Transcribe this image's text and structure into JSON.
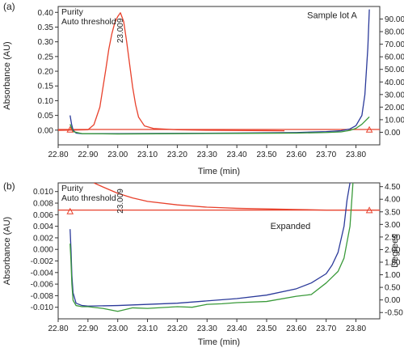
{
  "colors": {
    "red": "#e8412c",
    "blue": "#2b3a9a",
    "green": "#3a9a3a",
    "axis": "#333333"
  },
  "chart_data": [
    {
      "panel_label": "(a)",
      "type": "line",
      "xlabel": "Time (min)",
      "ylabel": "Absorbance (AU)",
      "y2label": "",
      "xlim": [
        22.8,
        23.88
      ],
      "ylim": [
        -0.05,
        0.42
      ],
      "y2lim": [
        -10,
        100
      ],
      "xticks": [
        22.8,
        22.9,
        23.0,
        23.1,
        23.2,
        23.3,
        23.4,
        23.5,
        23.6,
        23.7,
        23.8
      ],
      "xtick_labels": [
        "22.80",
        "22.90",
        "23.00",
        "23.10",
        "23.20",
        "23.30",
        "23.40",
        "23.50",
        "23.60",
        "23.70",
        "23.80"
      ],
      "yticks": [
        0.0,
        0.05,
        0.1,
        0.15,
        0.2,
        0.25,
        0.3,
        0.35,
        0.4
      ],
      "ytick_labels": [
        "0.00",
        "0.05",
        "0.10",
        "0.15",
        "0.20",
        "0.25",
        "0.30",
        "0.35",
        "0.40"
      ],
      "y2ticks": [
        0,
        10,
        20,
        30,
        40,
        50,
        60,
        70,
        80,
        90
      ],
      "y2tick_labels": [
        "0.00",
        "10.00",
        "20.00",
        "30.00",
        "40.00",
        "50.00",
        "60.00",
        "70.00",
        "80.00",
        "90.00"
      ],
      "legend": [
        "Purity",
        "Auto threshold"
      ],
      "annotations": [
        {
          "text": "Sample lot A",
          "x": 23.72,
          "y": 0.38,
          "anchor": "middle"
        }
      ],
      "peak_label": {
        "text": "23.009",
        "x": 23.009,
        "y": 0.38
      },
      "markers": [
        {
          "x": 22.84,
          "y": 0.0
        },
        {
          "x": 23.845,
          "y": 0.0
        }
      ],
      "series": [
        {
          "axis": "y2",
          "color": "red",
          "x": [
            22.79,
            22.9,
            22.92,
            22.94,
            22.96,
            22.97,
            22.98,
            22.99,
            23.0,
            23.009,
            23.02,
            23.03,
            23.04,
            23.05,
            23.06,
            23.07,
            23.09,
            23.12,
            23.2,
            23.3,
            23.4,
            23.5,
            23.56
          ],
          "y": [
            1.5,
            2.0,
            6,
            20,
            50,
            66,
            78,
            87,
            92,
            95,
            88,
            72,
            54,
            36,
            22,
            12,
            5,
            3,
            2,
            1.6,
            1.4,
            1.3,
            1.2
          ]
        },
        {
          "axis": "y2",
          "color": "red",
          "x": [
            22.79,
            23.88
          ],
          "y": [
            2.2,
            2.2
          ]
        },
        {
          "axis": "y",
          "color": "blue",
          "x": [
            22.84,
            22.845,
            22.85,
            22.86,
            22.88,
            22.9,
            23.0,
            23.2,
            23.4,
            23.6,
            23.7,
            23.75,
            23.78,
            23.8,
            23.82,
            23.83,
            23.84,
            23.845
          ],
          "y": [
            0.05,
            0.02,
            0.0,
            -0.01,
            -0.012,
            -0.012,
            -0.012,
            -0.011,
            -0.01,
            -0.008,
            -0.005,
            -0.002,
            0.004,
            0.015,
            0.05,
            0.12,
            0.28,
            0.41
          ]
        },
        {
          "axis": "y",
          "color": "green",
          "x": [
            22.84,
            22.85,
            22.88,
            22.9,
            23.0,
            23.2,
            23.4,
            23.6,
            23.7,
            23.75,
            23.78,
            23.8,
            23.82,
            23.84,
            23.845
          ],
          "y": [
            0.02,
            -0.005,
            -0.012,
            -0.012,
            -0.013,
            -0.012,
            -0.011,
            -0.01,
            -0.008,
            -0.006,
            -0.001,
            0.006,
            0.02,
            0.04,
            0.045
          ]
        }
      ]
    },
    {
      "panel_label": "(b)",
      "type": "line",
      "xlabel": "Time (min)",
      "ylabel": "Absorbance (AU)",
      "y2label": "Degrees",
      "xlim": [
        22.8,
        23.88
      ],
      "ylim": [
        -0.012,
        0.0115
      ],
      "y2lim": [
        -0.75,
        4.65
      ],
      "xticks": [
        22.8,
        22.9,
        23.0,
        23.1,
        23.2,
        23.3,
        23.4,
        23.5,
        23.6,
        23.7,
        23.8
      ],
      "xtick_labels": [
        "22.80",
        "22.90",
        "23.00",
        "23.10",
        "23.20",
        "23.30",
        "23.40",
        "23.50",
        "23.60",
        "23.70",
        "23.80"
      ],
      "yticks": [
        -0.01,
        -0.008,
        -0.006,
        -0.004,
        -0.002,
        0.0,
        0.002,
        0.004,
        0.006,
        0.008,
        0.01
      ],
      "ytick_labels": [
        "-0.010",
        "-0.008",
        "-0.006",
        "-0.004",
        "-0.002",
        "0.000",
        "0.002",
        "0.004",
        "0.006",
        "0.008",
        "0.010"
      ],
      "y2ticks": [
        -0.5,
        0.0,
        0.5,
        1.0,
        1.5,
        2.0,
        2.5,
        3.0,
        3.5,
        4.0,
        4.5
      ],
      "y2tick_labels": [
        "-0.50",
        "0.00",
        "0.50",
        "1.00",
        "1.50",
        "2.00",
        "2.50",
        "3.00",
        "3.50",
        "4.00",
        "4.50"
      ],
      "legend": [
        "Purity",
        "Auto threshold"
      ],
      "annotations": [
        {
          "text": "Expanded",
          "x": 23.58,
          "y": 0.0035,
          "anchor": "middle"
        }
      ],
      "peak_label": {
        "text": "23.009",
        "x": 23.009,
        "y": 0.0105
      },
      "markers": [
        {
          "x": 22.84,
          "y": 0.0065
        },
        {
          "x": 23.845,
          "y": 0.0067
        }
      ],
      "series": [
        {
          "axis": "y",
          "color": "red",
          "x": [
            22.92,
            22.95,
            23.0,
            23.05,
            23.1,
            23.2,
            23.3,
            23.4,
            23.5,
            23.6,
            23.7,
            23.8,
            23.88
          ],
          "y": [
            0.0115,
            0.0108,
            0.0097,
            0.0089,
            0.0083,
            0.0077,
            0.0073,
            0.0071,
            0.007,
            0.0069,
            0.0068,
            0.0068,
            0.0068
          ]
        },
        {
          "axis": "y",
          "color": "red",
          "x": [
            22.79,
            23.88
          ],
          "y": [
            0.0068,
            0.0068
          ]
        },
        {
          "axis": "y",
          "color": "blue",
          "x": [
            22.84,
            22.843,
            22.846,
            22.85,
            22.86,
            22.88,
            22.9,
            23.0,
            23.2,
            23.4,
            23.5,
            23.6,
            23.65,
            23.7,
            23.72,
            23.74,
            23.76,
            23.77,
            23.78
          ],
          "y": [
            0.0035,
            0.0,
            -0.0045,
            -0.0075,
            -0.0093,
            -0.0097,
            -0.0098,
            -0.0097,
            -0.0093,
            -0.0085,
            -0.0079,
            -0.0068,
            -0.0058,
            -0.0042,
            -0.0027,
            -0.0005,
            0.004,
            0.0085,
            0.0115
          ]
        },
        {
          "axis": "y",
          "color": "green",
          "x": [
            22.84,
            22.843,
            22.846,
            22.85,
            22.86,
            22.88,
            22.9,
            22.95,
            23.0,
            23.05,
            23.1,
            23.2,
            23.25,
            23.3,
            23.35,
            23.4,
            23.5,
            23.6,
            23.65,
            23.7,
            23.72,
            23.74,
            23.76,
            23.78,
            23.79
          ],
          "y": [
            0.001,
            -0.002,
            -0.006,
            -0.0088,
            -0.0097,
            -0.0099,
            -0.0099,
            -0.0102,
            -0.0107,
            -0.0101,
            -0.0102,
            -0.0099,
            -0.01,
            -0.0095,
            -0.0094,
            -0.0092,
            -0.009,
            -0.0081,
            -0.0078,
            -0.0058,
            -0.0048,
            -0.0038,
            -0.0015,
            0.004,
            0.0115
          ]
        }
      ]
    }
  ]
}
